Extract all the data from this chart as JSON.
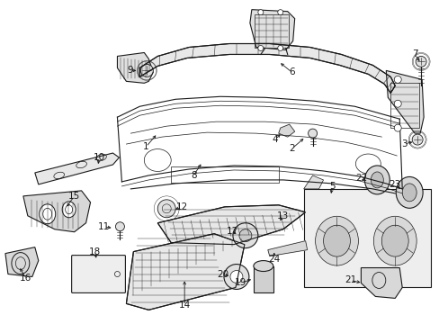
{
  "bg_color": "#ffffff",
  "fig_width": 4.89,
  "fig_height": 3.6,
  "dpi": 100,
  "line_color": "#1a1a1a",
  "label_fontsize": 7.5
}
